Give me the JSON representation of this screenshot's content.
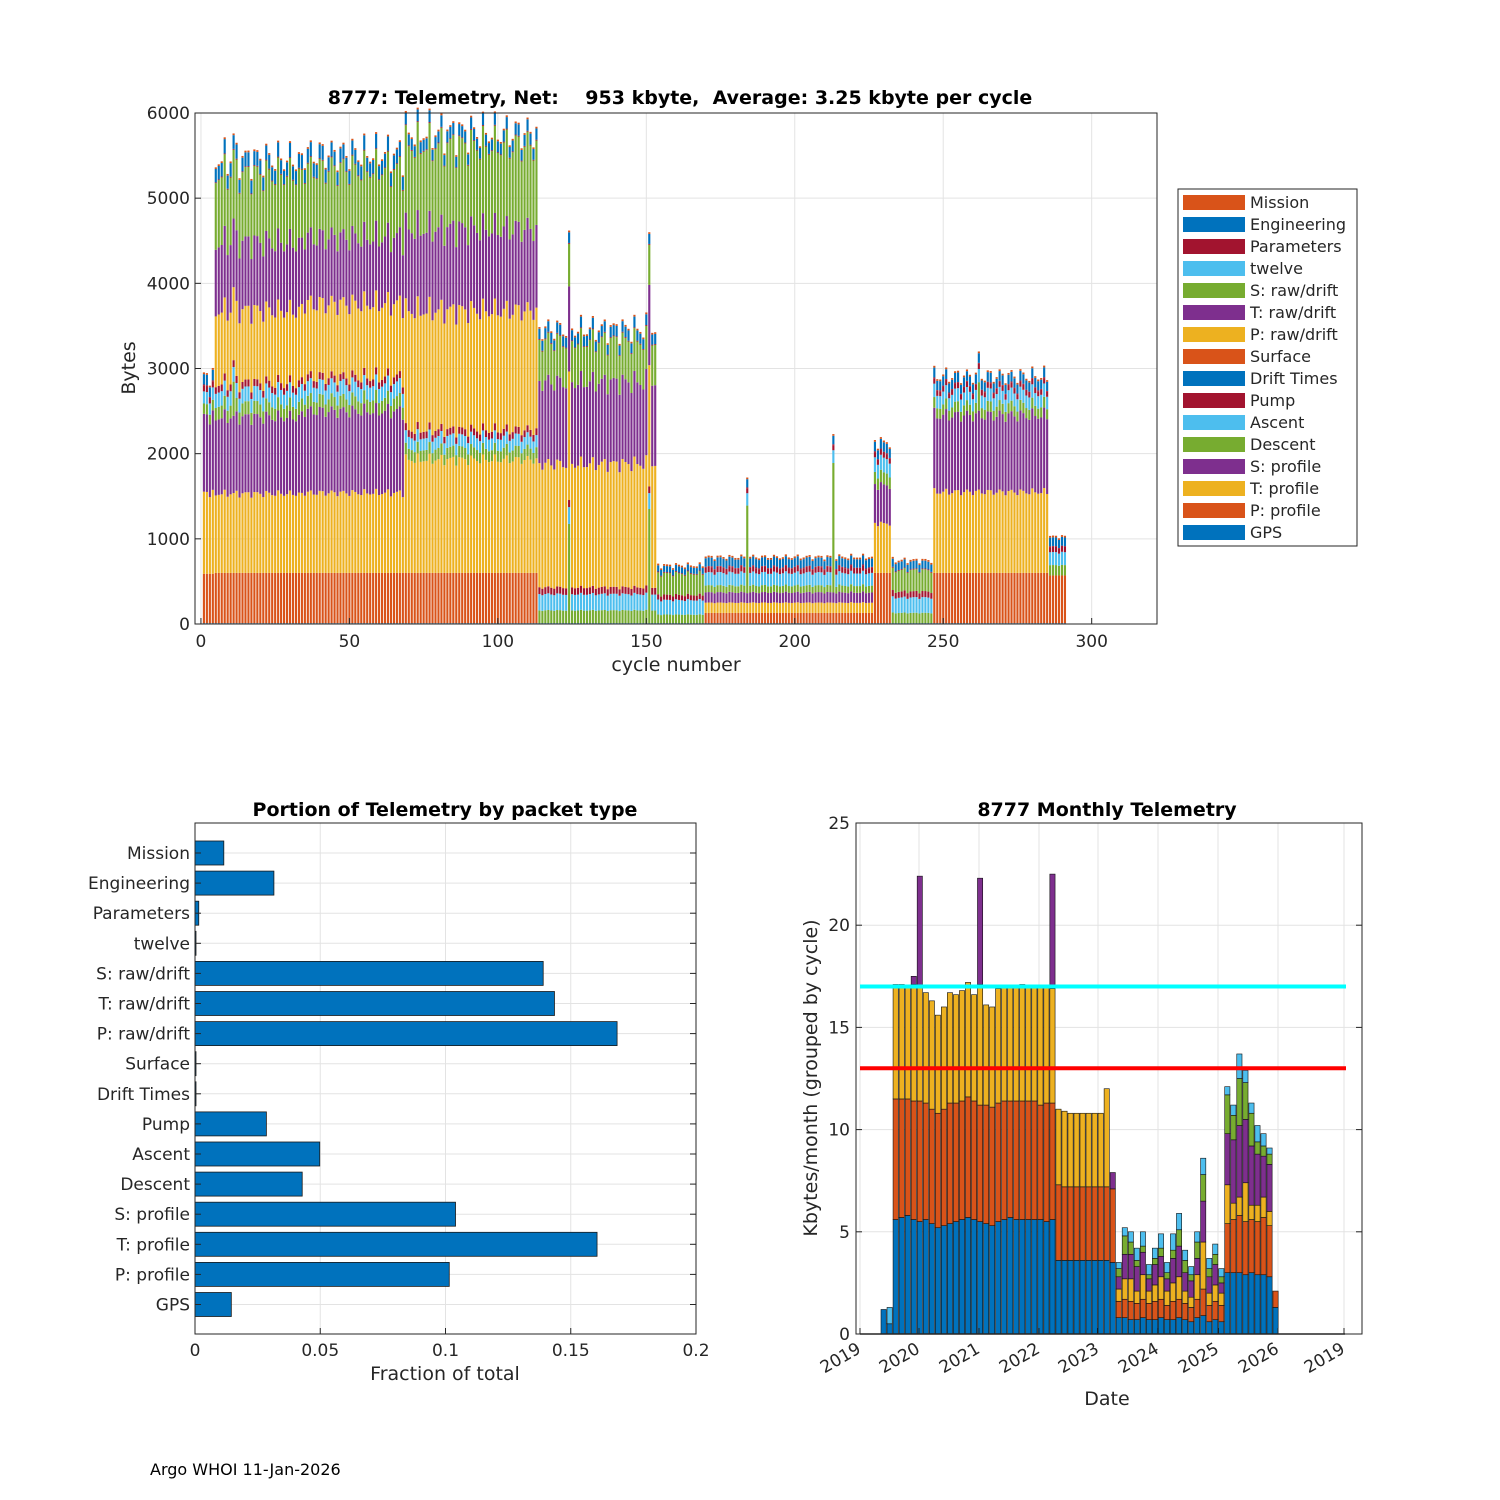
{
  "footer": "Argo WHOI 11-Jan-2026",
  "packet_colors": [
    "#0072BD",
    "#D95319",
    "#EDB120",
    "#7E2F8E",
    "#77AC30",
    "#4DBEEE",
    "#A2142F",
    "#0072BD",
    "#D95319",
    "#EDB120",
    "#7E2F8E",
    "#77AC30",
    "#4DBEEE",
    "#A2142F",
    "#0072BD",
    "#D95319"
  ],
  "chart_data": [
    {
      "type": "bar",
      "stacked": true,
      "title": "8777: Telemetry, Net:    953 kbyte,  Average: 3.25 kbyte per cycle",
      "xlabel": "cycle number",
      "ylabel": "Bytes",
      "xlim": [
        -2,
        322
      ],
      "ylim": [
        0,
        6000
      ],
      "xticks": [
        "0",
        "50",
        "100",
        "150",
        "200",
        "250",
        "300"
      ],
      "yticks": [
        "0",
        "1000",
        "2000",
        "3000",
        "4000",
        "5000",
        "6000"
      ],
      "grid": true,
      "legend_position": "outside-right",
      "legend": [
        "Mission",
        "Engineering",
        "Parameters",
        "twelve",
        "S: raw/drift",
        "T: raw/drift",
        "P: raw/drift",
        "Surface",
        "Drift Times",
        "Pump",
        "Ascent",
        "Descent",
        "S: profile",
        "T: profile",
        "P: profile",
        "GPS"
      ],
      "series_order_bottom_up": [
        "GPS",
        "P: profile",
        "T: profile",
        "S: profile",
        "Descent",
        "Ascent",
        "Pump",
        "Drift Times",
        "Surface",
        "P: raw/drift",
        "T: raw/drift",
        "S: raw/drift",
        "twelve",
        "Parameters",
        "Engineering",
        "Mission"
      ],
      "phases": [
        {
          "cycles": [
            1,
            4
          ],
          "values": [
            10,
            580,
            950,
            900,
            120,
            140,
            70,
            0,
            0,
            0,
            0,
            0,
            0,
            10,
            120,
            20
          ]
        },
        {
          "cycles": [
            5,
            33
          ],
          "values": [
            10,
            590,
            930,
            900,
            150,
            170,
            80,
            0,
            0,
            850,
            800,
            800,
            0,
            10,
            160,
            20
          ]
        },
        {
          "cycles": [
            34,
            68
          ],
          "values": [
            10,
            590,
            940,
            960,
            150,
            170,
            80,
            0,
            0,
            860,
            780,
            800,
            0,
            10,
            160,
            20
          ]
        },
        {
          "cycles": [
            69,
            113
          ],
          "values": [
            10,
            590,
            1330,
            0,
            130,
            140,
            80,
            0,
            0,
            1400,
            960,
            980,
            0,
            10,
            130,
            20
          ]
        },
        {
          "cycles": [
            114,
            153
          ],
          "values": [
            10,
            0,
            0,
            0,
            150,
            190,
            80,
            0,
            0,
            1450,
            960,
            480,
            0,
            10,
            120,
            20
          ]
        },
        {
          "cycles": [
            154,
            169
          ],
          "values": [
            10,
            0,
            0,
            0,
            100,
            170,
            60,
            0,
            0,
            0,
            0,
            250,
            0,
            10,
            70,
            20
          ]
        },
        {
          "cycles": [
            170,
            226
          ],
          "values": [
            10,
            120,
            120,
            120,
            80,
            150,
            60,
            0,
            0,
            0,
            0,
            0,
            0,
            10,
            100,
            20
          ]
        },
        {
          "cycles": [
            227,
            232
          ],
          "values": [
            10,
            590,
            580,
            450,
            140,
            170,
            60,
            0,
            0,
            0,
            0,
            0,
            0,
            10,
            110,
            20
          ]
        },
        {
          "cycles": [
            233,
            246
          ],
          "values": [
            10,
            0,
            0,
            0,
            120,
            180,
            70,
            0,
            0,
            0,
            0,
            250,
            0,
            10,
            90,
            20
          ]
        },
        {
          "cycles": [
            247,
            285
          ],
          "values": [
            10,
            590,
            950,
            900,
            120,
            150,
            60,
            0,
            0,
            0,
            0,
            0,
            0,
            10,
            110,
            20
          ]
        },
        {
          "cycles": [
            286,
            291
          ],
          "values": [
            10,
            560,
            0,
            0,
            120,
            150,
            60,
            0,
            0,
            0,
            0,
            0,
            0,
            10,
            100,
            20
          ]
        }
      ],
      "spikes": [
        {
          "cycle": 11,
          "total": 5760
        },
        {
          "cycle": 124,
          "total": 4620
        },
        {
          "cycle": 151,
          "total": 4600
        },
        {
          "cycle": 184,
          "total": 1720
        },
        {
          "cycle": 213,
          "total": 2230
        },
        {
          "cycle": 262,
          "total": 3200
        }
      ]
    },
    {
      "type": "bar",
      "orientation": "horizontal",
      "title": "Portion of Telemetry by packet type",
      "xlabel": "Fraction of total",
      "ylabel": "",
      "xlim": [
        0,
        0.2
      ],
      "xticks": [
        "0",
        "0.05",
        "0.1",
        "0.15",
        "0.2"
      ],
      "grid": true,
      "categories": [
        "Mission",
        "Engineering",
        "Parameters",
        "twelve",
        "S: raw/drift",
        "T: raw/drift",
        "P: raw/drift",
        "Surface",
        "Drift Times",
        "Pump",
        "Ascent",
        "Descent",
        "S: profile",
        "T: profile",
        "P: profile",
        "GPS"
      ],
      "values": [
        0.0115,
        0.0315,
        0.0015,
        0.0003,
        0.139,
        0.1435,
        0.1685,
        0.0003,
        0.0003,
        0.0285,
        0.0498,
        0.0428,
        0.104,
        0.1605,
        0.1015,
        0.0145
      ],
      "bar_color": "#0072BD"
    },
    {
      "type": "bar",
      "stacked": true,
      "title": "8777 Monthly Telemetry",
      "xlabel": "Date",
      "ylabel": "Kbytes/month (grouped by cycle)",
      "ylim": [
        0,
        25
      ],
      "yticks": [
        "0",
        "5",
        "10",
        "15",
        "20",
        "25"
      ],
      "xticks": [
        "2019",
        "2020",
        "2021",
        "2022",
        "2023",
        "2024",
        "2025",
        "2026",
        "2019"
      ],
      "grid": true,
      "series_colors": [
        "#0072BD",
        "#D95319",
        "#EDB120",
        "#7E2F8E",
        "#77AC30",
        "#4DBEEE"
      ],
      "reference_lines": [
        {
          "value": 17,
          "color": "#00FFFF"
        },
        {
          "value": 13,
          "color": "#FF0000"
        }
      ],
      "months_start": "2019-07",
      "monthly": [
        [
          1.2,
          0,
          0,
          0,
          0,
          0
        ],
        [
          0.5,
          0,
          0,
          0,
          0,
          0.8
        ],
        [
          5.6,
          5.9,
          5.6,
          0,
          0,
          0
        ],
        [
          5.7,
          5.8,
          5.6,
          0,
          0,
          0
        ],
        [
          5.8,
          5.7,
          5.5,
          0,
          0,
          0
        ],
        [
          5.6,
          5.8,
          5.7,
          0.4,
          0,
          0
        ],
        [
          5.5,
          5.9,
          5.6,
          5.4,
          0,
          0
        ],
        [
          5.6,
          5.7,
          5.4,
          0,
          0,
          0
        ],
        [
          5.4,
          5.6,
          5.3,
          0,
          0,
          0
        ],
        [
          5.2,
          5.6,
          4.8,
          0,
          0,
          0
        ],
        [
          5.3,
          5.7,
          5.0,
          0,
          0,
          0
        ],
        [
          5.4,
          5.9,
          5.4,
          0,
          0,
          0
        ],
        [
          5.5,
          5.8,
          5.3,
          0,
          0,
          0
        ],
        [
          5.6,
          5.8,
          5.4,
          0,
          0,
          0
        ],
        [
          5.7,
          5.9,
          5.6,
          0,
          0,
          0
        ],
        [
          5.6,
          5.8,
          5.2,
          0,
          0,
          0
        ],
        [
          5.5,
          5.7,
          5.9,
          5.2,
          0,
          0
        ],
        [
          5.4,
          5.8,
          4.9,
          0,
          0,
          0
        ],
        [
          5.3,
          5.8,
          4.9,
          0,
          0,
          0
        ],
        [
          5.5,
          5.8,
          5.6,
          0,
          0,
          0
        ],
        [
          5.6,
          5.8,
          5.6,
          0,
          0,
          0
        ],
        [
          5.7,
          5.7,
          5.6,
          0,
          0,
          0
        ],
        [
          5.6,
          5.8,
          5.6,
          0,
          0,
          0
        ],
        [
          5.6,
          5.8,
          5.7,
          0,
          0,
          0
        ],
        [
          5.6,
          5.8,
          5.6,
          0,
          0,
          0
        ],
        [
          5.6,
          5.8,
          5.6,
          0,
          0,
          0
        ],
        [
          5.6,
          5.6,
          5.8,
          0,
          0,
          0
        ],
        [
          5.5,
          5.8,
          5.7,
          0,
          0,
          0
        ],
        [
          5.6,
          5.7,
          5.6,
          5.6,
          0,
          0
        ],
        [
          3.6,
          3.7,
          3.7,
          0,
          0,
          0
        ],
        [
          3.6,
          3.6,
          3.7,
          0,
          0,
          0
        ],
        [
          3.6,
          3.6,
          3.6,
          0,
          0,
          0
        ],
        [
          3.6,
          3.6,
          3.6,
          0,
          0,
          0
        ],
        [
          3.6,
          3.6,
          3.6,
          0,
          0,
          0
        ],
        [
          3.6,
          3.6,
          3.6,
          0,
          0,
          0
        ],
        [
          3.6,
          3.6,
          3.6,
          0,
          0,
          0
        ],
        [
          3.6,
          3.6,
          3.6,
          0,
          0,
          0
        ],
        [
          3.6,
          3.6,
          4.8,
          0,
          0,
          0
        ],
        [
          3.5,
          3.6,
          0,
          0.8,
          0,
          0
        ],
        [
          0.8,
          0.8,
          0.6,
          0.6,
          0.4,
          0.3
        ],
        [
          0.8,
          0.9,
          1.0,
          1.2,
          0.9,
          0.4
        ],
        [
          0.7,
          0.9,
          1.1,
          1.2,
          0.6,
          0.5
        ],
        [
          0.7,
          0.8,
          0.6,
          1.2,
          0.3,
          0.6
        ],
        [
          0.8,
          0.9,
          1.2,
          1.1,
          0.3,
          0.7
        ],
        [
          0.7,
          0.8,
          0.6,
          0.6,
          0.2,
          0.5
        ],
        [
          0.7,
          0.9,
          0.8,
          1.0,
          0.3,
          0.5
        ],
        [
          0.8,
          0.9,
          1.1,
          1.0,
          0.4,
          0.7
        ],
        [
          0.7,
          0.7,
          0.7,
          0.6,
          0.3,
          0.5
        ],
        [
          0.7,
          0.9,
          0.9,
          1.2,
          0.4,
          0.8
        ],
        [
          0.8,
          0.9,
          1.1,
          1.5,
          0.8,
          0.8
        ],
        [
          0.7,
          0.8,
          0.6,
          0.9,
          0.6,
          0.5
        ],
        [
          0.6,
          0.7,
          0.5,
          0.8,
          0.3,
          0.4
        ],
        [
          0.8,
          0.9,
          1.2,
          0.8,
          0.8,
          0.5
        ],
        [
          0.9,
          1.3,
          2.3,
          2.0,
          1.3,
          0.8
        ],
        [
          0.6,
          0.8,
          0.6,
          0.8,
          0.4,
          0.5
        ],
        [
          0.7,
          0.9,
          0.8,
          1.0,
          0.5,
          0.5
        ],
        [
          0.6,
          0.8,
          0.6,
          0.5,
          0.3,
          0.4
        ],
        [
          3.0,
          2.4,
          1.9,
          2.5,
          1.9,
          0.4
        ],
        [
          3.0,
          2.6,
          0.8,
          3.1,
          1.2,
          0.5
        ],
        [
          3.0,
          2.8,
          0.9,
          3.5,
          2.3,
          1.2
        ],
        [
          2.9,
          2.6,
          1.9,
          3.1,
          1.8,
          0.6
        ],
        [
          3.0,
          2.6,
          0.7,
          2.9,
          1.6,
          0.5
        ],
        [
          2.9,
          2.6,
          0.8,
          2.5,
          0.6,
          0.8
        ],
        [
          2.9,
          2.8,
          1.0,
          2.0,
          0.5,
          0.6
        ],
        [
          2.8,
          2.5,
          0.7,
          2.3,
          0.5,
          0.3
        ],
        [
          1.3,
          0.8,
          0,
          0,
          0,
          0
        ]
      ]
    }
  ]
}
